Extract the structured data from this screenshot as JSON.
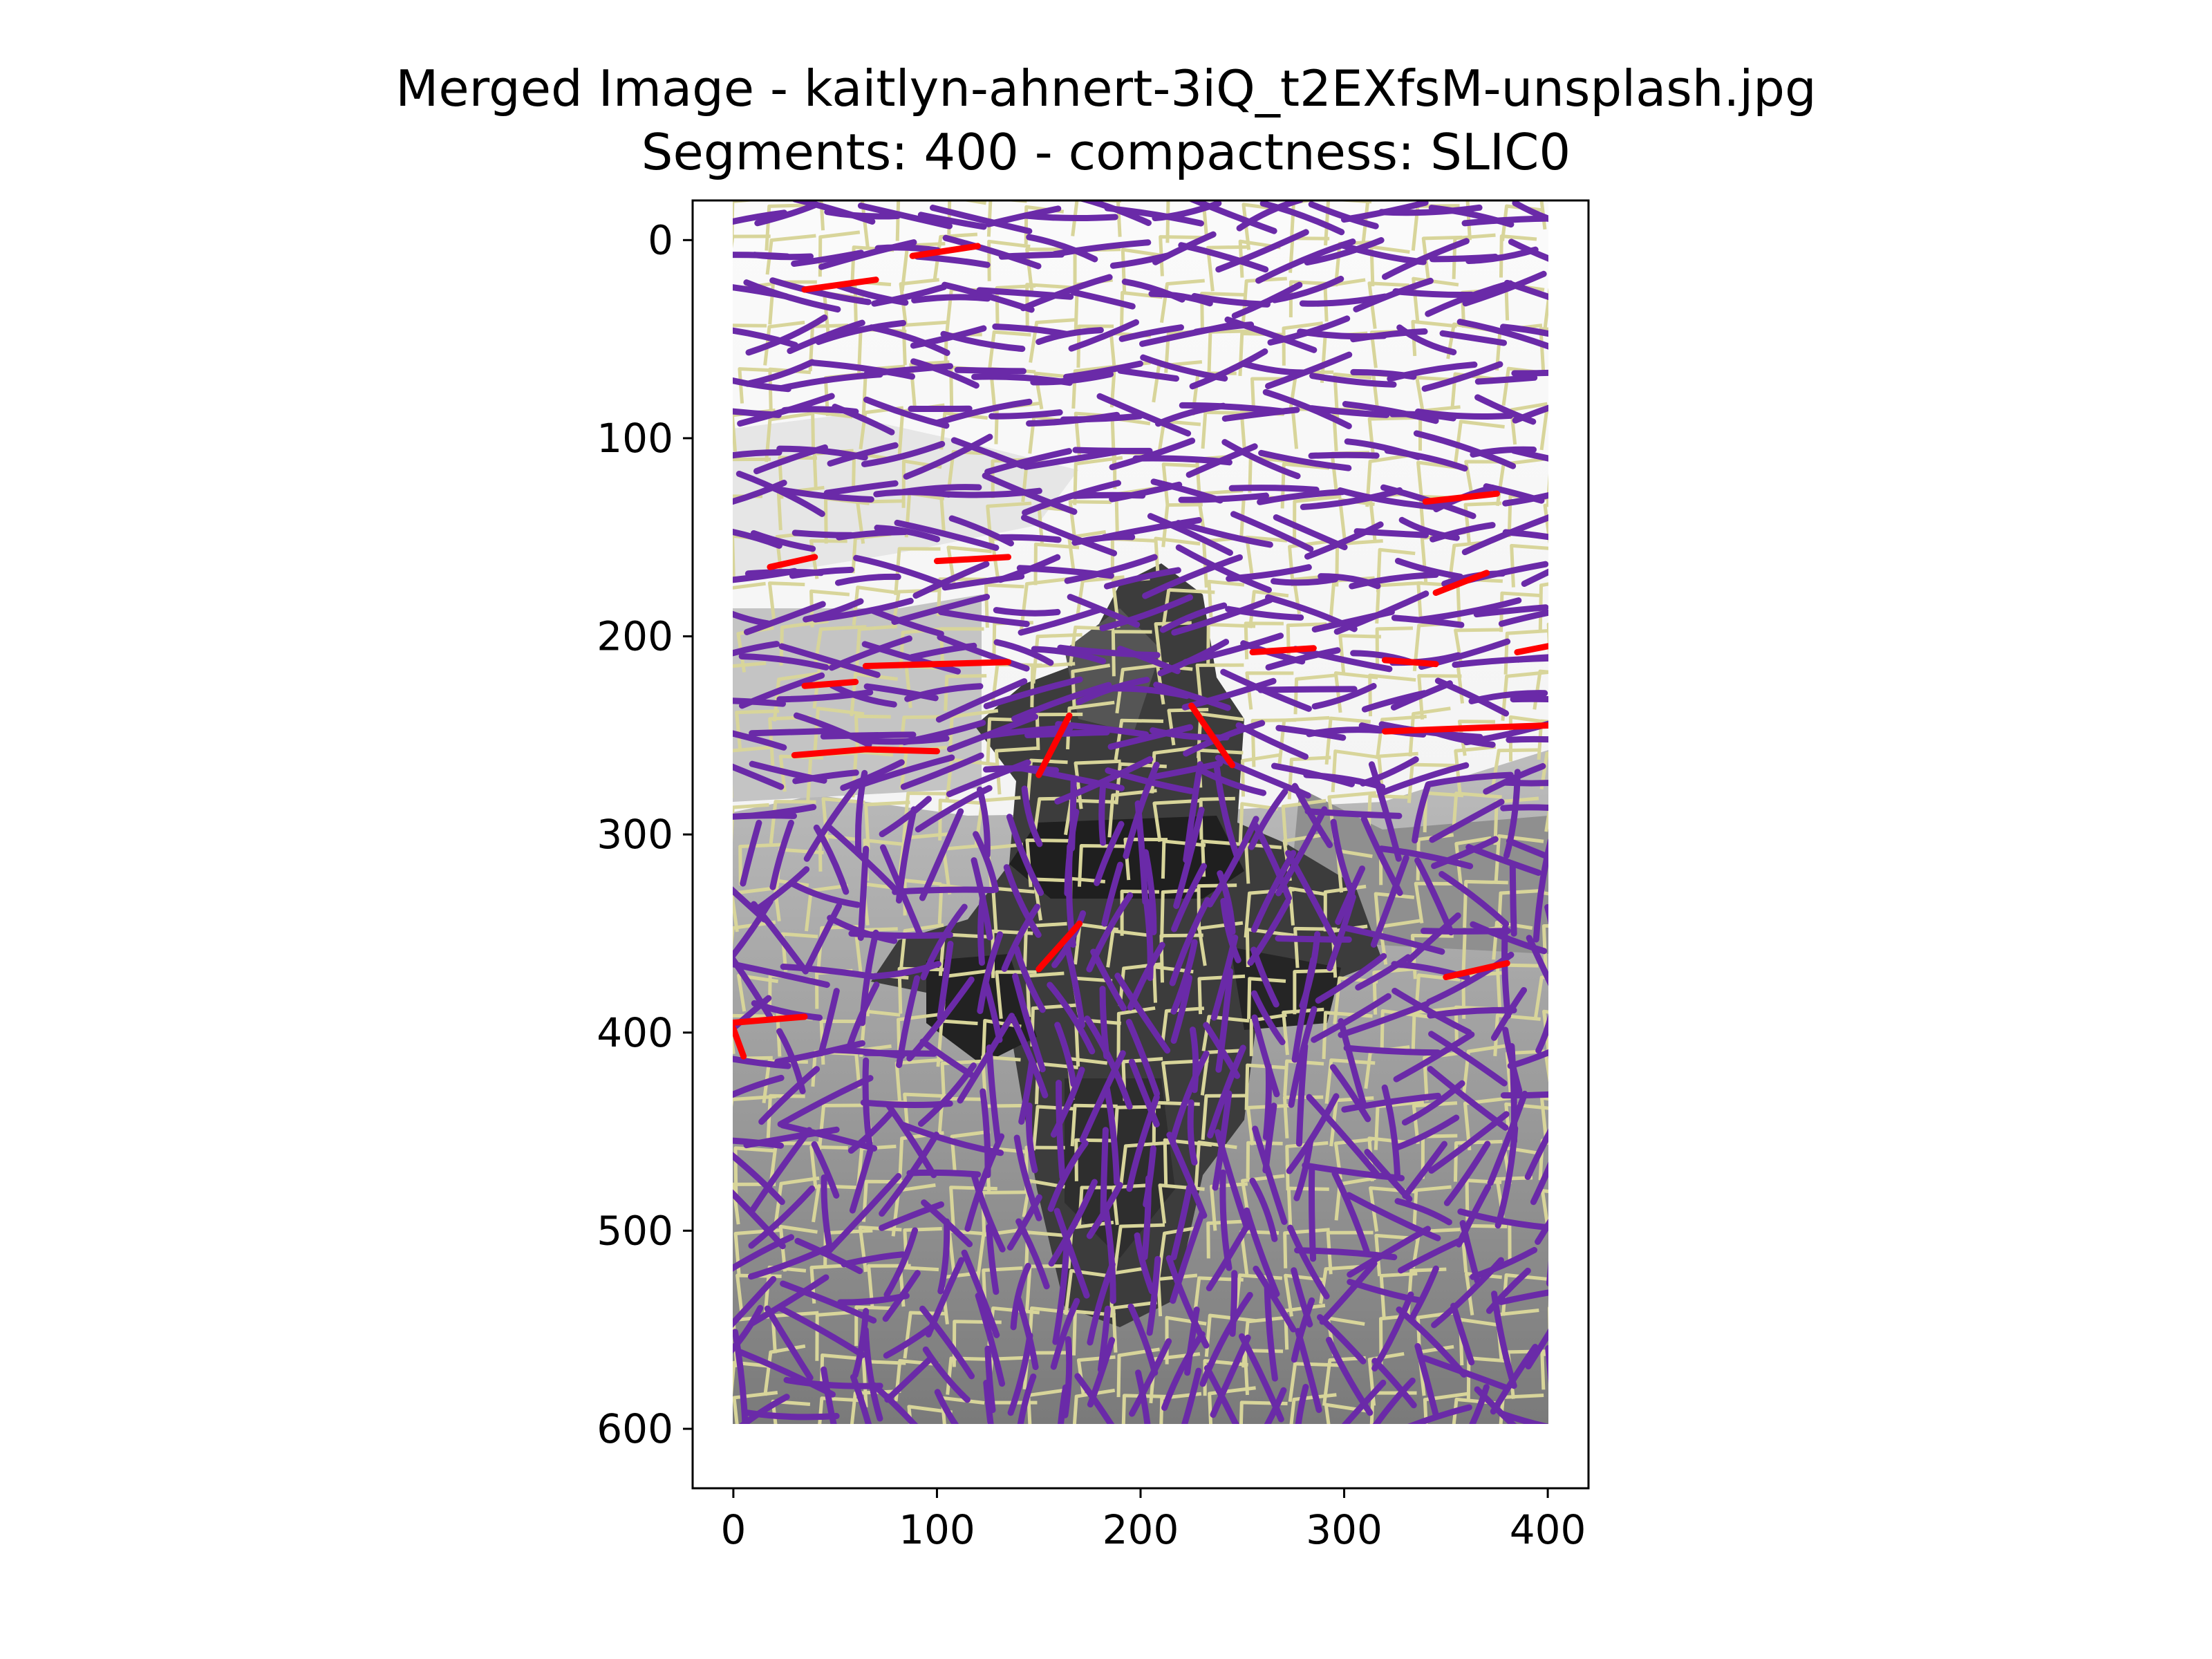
{
  "figure": {
    "title_line1": "Merged Image - kaitlyn-ahnert-3iQ_t2EXfsM-unsplash.jpg",
    "title_line2": "Segments: 400 - compactness: SLIC0"
  },
  "chart_data": {
    "type": "image",
    "title": "Merged Image - kaitlyn-ahnert-3iQ_t2EXfsM-unsplash.jpg\nSegments: 400 - compactness: SLIC0",
    "xlabel": "",
    "ylabel": "",
    "xlim": [
      -20,
      420
    ],
    "ylim": [
      630,
      -20
    ],
    "image_extent": {
      "x": [
        0,
        400
      ],
      "y": [
        0,
        600
      ]
    },
    "x_ticks": [
      0,
      100,
      200,
      300,
      400
    ],
    "y_ticks": [
      0,
      100,
      200,
      300,
      400,
      500,
      600
    ],
    "grid": false,
    "legend": "none",
    "colors": {
      "sky": "#f4f4f4",
      "ground_light": "#a8a8a8",
      "ground_dark": "#6e6e6e",
      "hydrant": "#3a3a3a",
      "hydrant_dark": "#1e1e1e",
      "segment_boundary": "#d8d59a",
      "graph_edge": "#6a2aa8",
      "highlight_edge": "#ff0000"
    }
  }
}
